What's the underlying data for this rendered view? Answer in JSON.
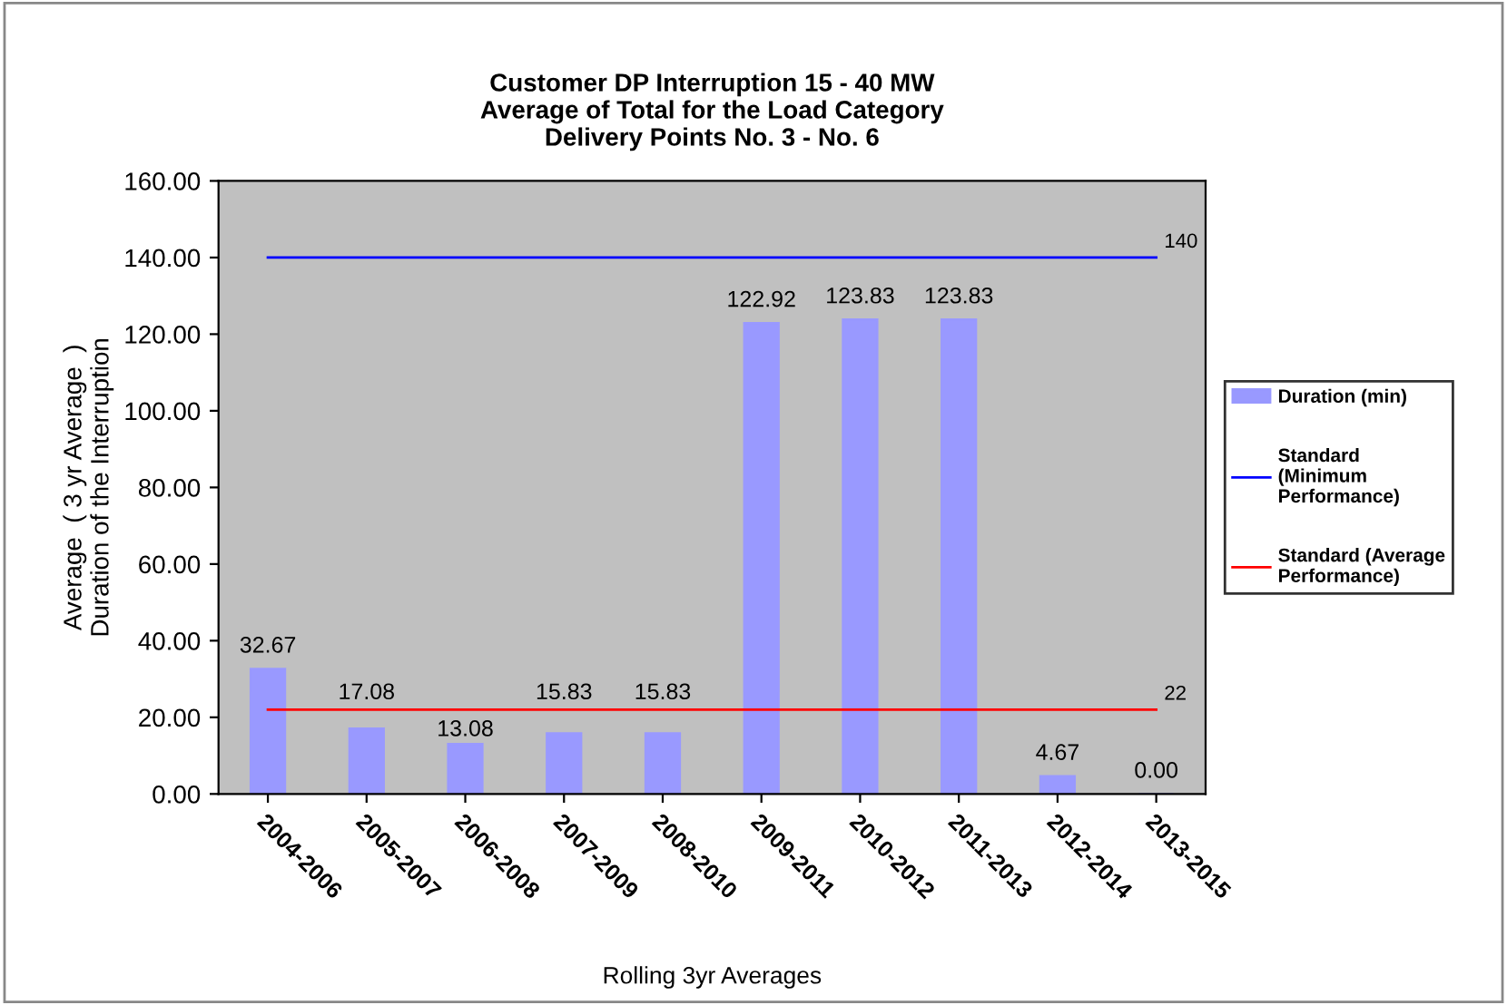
{
  "chart_data": {
    "type": "bar",
    "title": "Customer DP Interruption 15 - 40 MW\nAverage of Total for the Load Category\nDelivery Points No. 3 - No. 6",
    "xlabel": "Rolling 3yr Averages",
    "ylabel": "Average  ( 3 yr Average  )\nDuration of the Interruption",
    "categories": [
      "2004-2006",
      "2005-2007",
      "2006-2008",
      "2007-2009",
      "2008-2010",
      "2009-2011",
      "2010-2012",
      "2011-2013",
      "2012-2014",
      "2013-2015"
    ],
    "series": [
      {
        "name": "Duration (min)",
        "color": "#9999ff",
        "values": [
          32.67,
          17.08,
          13.08,
          15.83,
          15.83,
          122.92,
          123.83,
          123.83,
          4.67,
          0.0
        ],
        "value_labels": [
          "32.67",
          "17.08",
          "13.08",
          "15.83",
          "15.83",
          "122.92",
          "123.83",
          "123.83",
          "4.67",
          "0.00"
        ]
      },
      {
        "name": "Standard\n(Minimum\nPerformance)",
        "type": "line",
        "color": "#0000ff",
        "values": [
          140,
          140,
          140,
          140,
          140,
          140,
          140,
          140,
          140,
          140
        ],
        "value_labels": [
          null,
          null,
          null,
          null,
          null,
          null,
          null,
          null,
          null,
          "140"
        ]
      },
      {
        "name": "Standard (Average\nPerformance)",
        "type": "line",
        "color": "#ff0000",
        "values": [
          22,
          22,
          22,
          22,
          22,
          22,
          22,
          22,
          22,
          22
        ],
        "value_labels": [
          null,
          null,
          null,
          null,
          null,
          null,
          null,
          null,
          null,
          "22"
        ]
      }
    ],
    "ylim": [
      0,
      160
    ],
    "yticks": [
      {
        "value": 0,
        "label": "0.00"
      },
      {
        "value": 20,
        "label": "20.00"
      },
      {
        "value": 40,
        "label": "40.00"
      },
      {
        "value": 60,
        "label": "60.00"
      },
      {
        "value": 80,
        "label": "80.00"
      },
      {
        "value": 100,
        "label": "100.00"
      },
      {
        "value": 120,
        "label": "120.00"
      },
      {
        "value": 140,
        "label": "140.00"
      },
      {
        "value": 160,
        "label": "160.00"
      }
    ],
    "grid": false,
    "legend": "right",
    "marker": "none",
    "line_style": "solid"
  }
}
